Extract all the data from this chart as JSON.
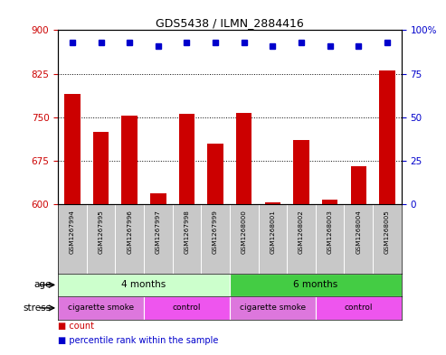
{
  "title": "GDS5438 / ILMN_2884416",
  "samples": [
    "GSM1267994",
    "GSM1267995",
    "GSM1267996",
    "GSM1267997",
    "GSM1267998",
    "GSM1267999",
    "GSM1268000",
    "GSM1268001",
    "GSM1268002",
    "GSM1268003",
    "GSM1268004",
    "GSM1268005"
  ],
  "counts": [
    790,
    725,
    752,
    618,
    755,
    705,
    757,
    603,
    710,
    608,
    665,
    830
  ],
  "percentiles": [
    93,
    93,
    93,
    91,
    93,
    93,
    93,
    91,
    93,
    91,
    91,
    93
  ],
  "ylim_left": [
    600,
    900
  ],
  "ylim_right": [
    0,
    100
  ],
  "yticks_left": [
    600,
    675,
    750,
    825,
    900
  ],
  "yticks_right": [
    0,
    25,
    50,
    75,
    100
  ],
  "bar_color": "#cc0000",
  "dot_color": "#0000cc",
  "age_groups": [
    {
      "label": "4 months",
      "start": 0,
      "end": 5,
      "color": "#ccffcc"
    },
    {
      "label": "6 months",
      "start": 6,
      "end": 11,
      "color": "#44cc44"
    }
  ],
  "stress_groups": [
    {
      "label": "cigarette smoke",
      "start": 0,
      "end": 2,
      "color": "#dd77dd"
    },
    {
      "label": "control",
      "start": 3,
      "end": 5,
      "color": "#ee55ee"
    },
    {
      "label": "cigarette smoke",
      "start": 6,
      "end": 8,
      "color": "#dd77dd"
    },
    {
      "label": "control",
      "start": 9,
      "end": 11,
      "color": "#ee55ee"
    }
  ],
  "sample_bg": "#c8c8c8",
  "legend_items": [
    {
      "marker": "s",
      "color": "#cc0000",
      "label": "count"
    },
    {
      "marker": "s",
      "color": "#0000cc",
      "label": "percentile rank within the sample"
    }
  ]
}
